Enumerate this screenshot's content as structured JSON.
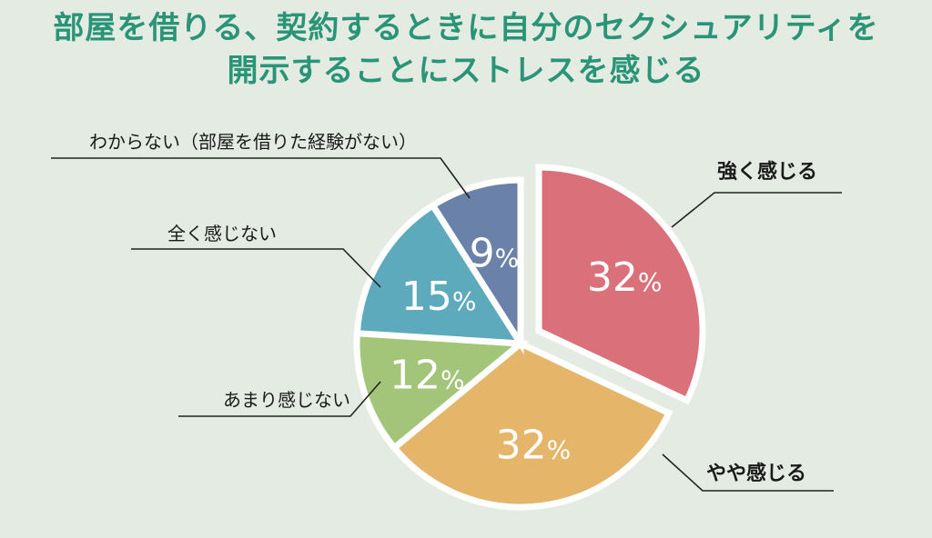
{
  "title_lines": [
    "部屋を借りる、契約するときに自分のセクシュアリティを",
    "開示することにストレスを感じる"
  ],
  "chart_data": {
    "type": "pie",
    "title": "部屋を借りる、契約するときに自分のセクシュアリティを開示することにストレスを感じる",
    "unit": "%",
    "slices": [
      {
        "label": "強く感じる",
        "value": 32,
        "value_label": "32%",
        "color": "#d9707a"
      },
      {
        "label": "やや感じる",
        "value": 32,
        "value_label": "32%",
        "color": "#e5b56a"
      },
      {
        "label": "あまり感じない",
        "value": 12,
        "value_label": "12%",
        "color": "#a3c57a"
      },
      {
        "label": "全く感じない",
        "value": 15,
        "value_label": "15%",
        "color": "#5eaabd"
      },
      {
        "label": "わからない（部屋を借りた経験がない）",
        "value": 9,
        "value_label": "9%",
        "color": "#6a82a9"
      }
    ],
    "start_angle": "12 o'clock",
    "direction": "clockwise",
    "exploded_slice": "強く感じる"
  }
}
